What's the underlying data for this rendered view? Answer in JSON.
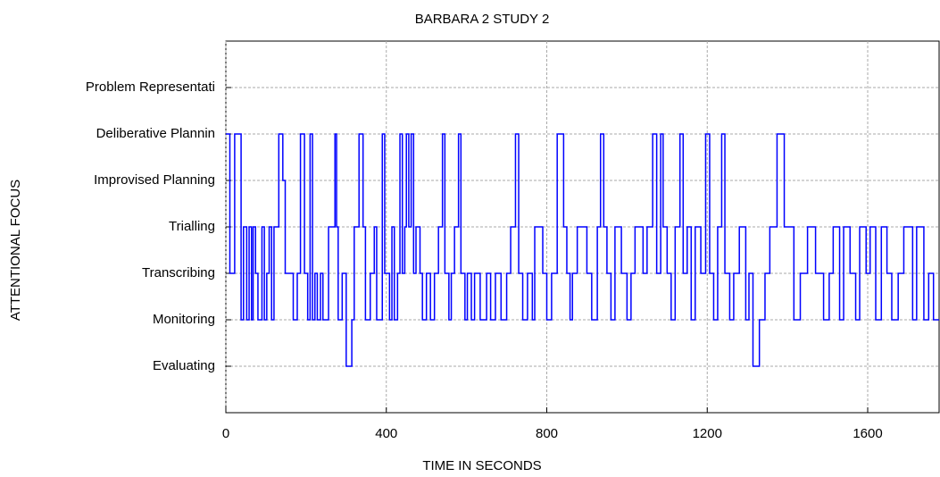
{
  "chart_data": {
    "type": "step",
    "title": "BARBARA 2 STUDY 2",
    "x_label": "TIME IN SECONDS",
    "y_label": "ATTENTIONAL FOCUS",
    "xlim": [
      0,
      1778
    ],
    "xticks": [
      0,
      400,
      800,
      1200,
      1600
    ],
    "ylim": [
      0,
      8
    ],
    "yticks": [
      {
        "value": 1,
        "label": "Evaluating"
      },
      {
        "value": 2,
        "label": "Monitoring"
      },
      {
        "value": 3,
        "label": "Transcribing"
      },
      {
        "value": 4,
        "label": "Trialling"
      },
      {
        "value": 5,
        "label": "Improvised Planning"
      },
      {
        "value": 6,
        "label": "Deliberative Plannin"
      },
      {
        "value": 7,
        "label": "Problem Representati"
      }
    ],
    "grid": true,
    "color": "#0000ff",
    "x": [
      0,
      10,
      22,
      38,
      44,
      52,
      58,
      64,
      68,
      74,
      80,
      90,
      96,
      102,
      108,
      114,
      120,
      132,
      142,
      148,
      168,
      178,
      186,
      196,
      204,
      210,
      216,
      222,
      228,
      236,
      242,
      256,
      272,
      276,
      280,
      290,
      300,
      314,
      320,
      332,
      342,
      348,
      360,
      370,
      376,
      390,
      396,
      408,
      414,
      420,
      428,
      434,
      440,
      446,
      450,
      456,
      462,
      468,
      474,
      484,
      490,
      500,
      510,
      520,
      530,
      540,
      546,
      556,
      562,
      570,
      580,
      586,
      596,
      602,
      612,
      620,
      634,
      650,
      660,
      672,
      686,
      700,
      710,
      722,
      730,
      740,
      752,
      764,
      770,
      790,
      800,
      812,
      826,
      842,
      850,
      858,
      864,
      876,
      900,
      912,
      926,
      934,
      942,
      950,
      960,
      970,
      986,
      1000,
      1010,
      1020,
      1040,
      1050,
      1064,
      1074,
      1084,
      1090,
      1100,
      1110,
      1120,
      1132,
      1140,
      1150,
      1160,
      1170,
      1184,
      1196,
      1206,
      1216,
      1226,
      1236,
      1244,
      1256,
      1266,
      1280,
      1296,
      1304,
      1314,
      1330,
      1344,
      1356,
      1374,
      1392,
      1416,
      1432,
      1450,
      1470,
      1490,
      1504,
      1514,
      1530,
      1540,
      1556,
      1570,
      1580,
      1596,
      1606,
      1620,
      1634,
      1648,
      1660,
      1676,
      1690,
      1712,
      1722,
      1740,
      1752,
      1764,
      1778
    ],
    "values": [
      6,
      3,
      6,
      2,
      4,
      2,
      4,
      2,
      4,
      3,
      2,
      4,
      2,
      3,
      4,
      2,
      4,
      6,
      5,
      3,
      2,
      3,
      6,
      3,
      2,
      6,
      2,
      3,
      2,
      3,
      2,
      4,
      6,
      4,
      2,
      3,
      1,
      2,
      4,
      6,
      4,
      2,
      3,
      4,
      2,
      6,
      3,
      2,
      4,
      2,
      3,
      6,
      3,
      4,
      6,
      4,
      6,
      3,
      4,
      3,
      2,
      3,
      2,
      3,
      4,
      6,
      3,
      2,
      3,
      4,
      6,
      3,
      2,
      3,
      2,
      3,
      2,
      3,
      2,
      3,
      2,
      3,
      4,
      6,
      3,
      2,
      3,
      2,
      4,
      3,
      2,
      3,
      6,
      4,
      3,
      2,
      3,
      4,
      3,
      2,
      4,
      6,
      4,
      3,
      2,
      4,
      3,
      2,
      3,
      4,
      3,
      4,
      6,
      3,
      6,
      4,
      3,
      2,
      4,
      6,
      3,
      4,
      2,
      4,
      3,
      6,
      3,
      2,
      4,
      6,
      3,
      2,
      3,
      4,
      2,
      3,
      1,
      2,
      3,
      4,
      6,
      4,
      2,
      3,
      4,
      3,
      2,
      3,
      4,
      2,
      4,
      3,
      2,
      4,
      3,
      4,
      2,
      4,
      3,
      2,
      3,
      4,
      2,
      4,
      2,
      3,
      2,
      2
    ]
  }
}
